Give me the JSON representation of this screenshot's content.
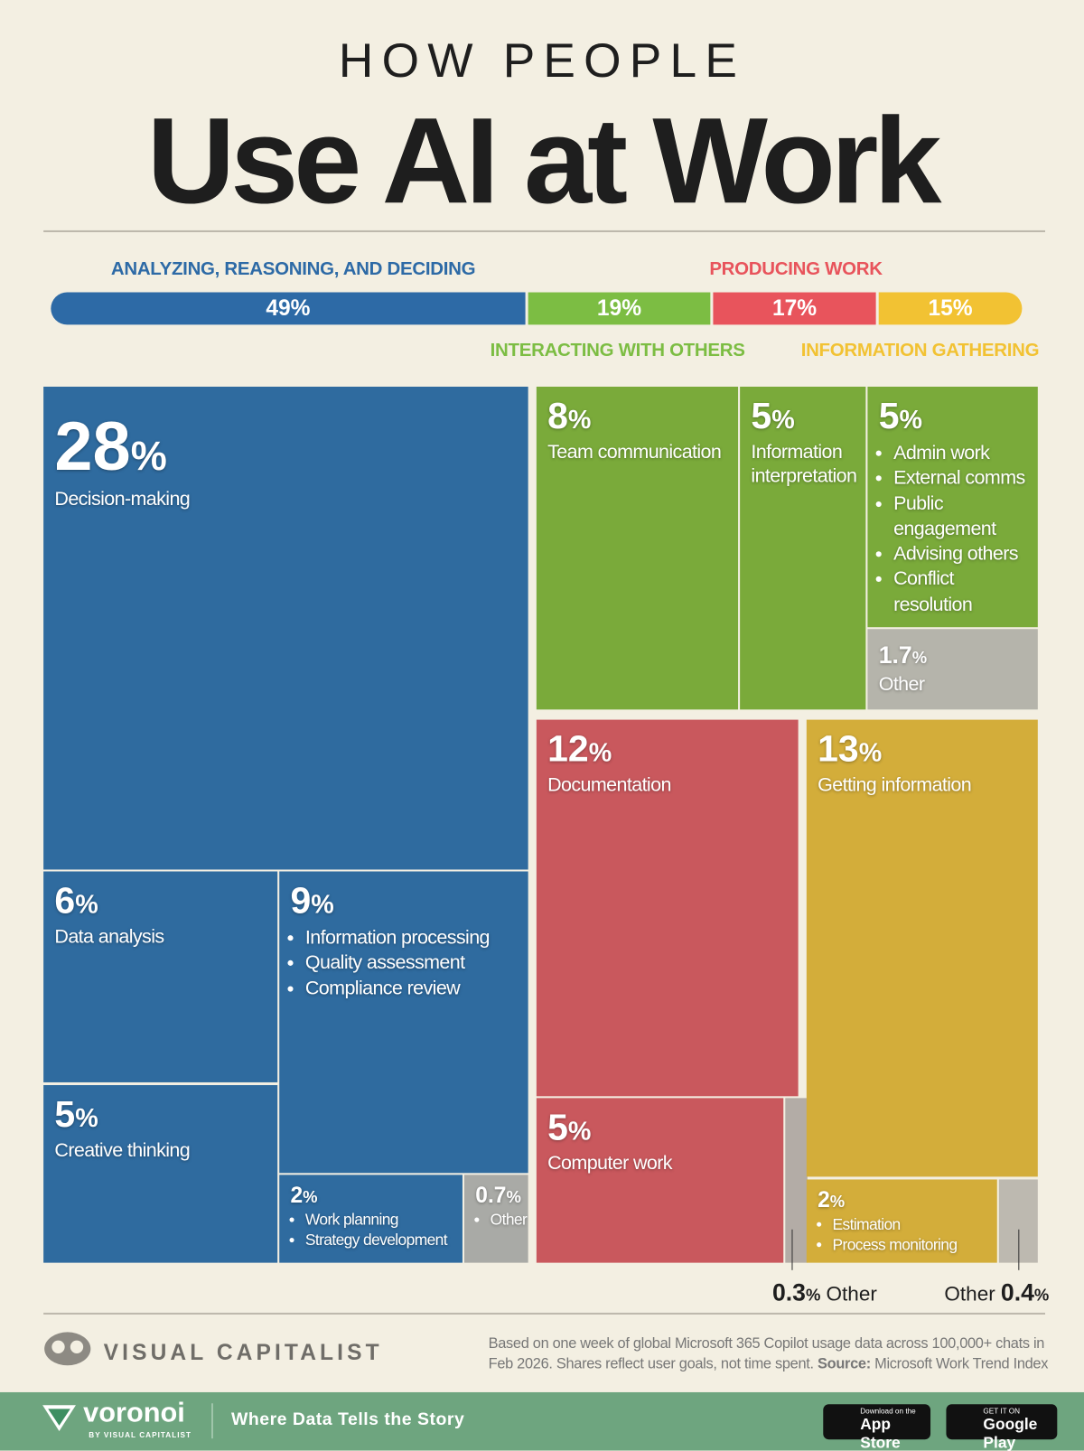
{
  "chart_data": {
    "type": "treemap",
    "kicker": "HOW PEOPLE",
    "title": "Use AI at Work",
    "unit": "%",
    "groups": [
      {
        "name": "ANALYZING, REASONING, AND DECIDING",
        "value": 49,
        "color": "#2d6aa6",
        "tile_color": "#2f6b9f",
        "tiles": [
          {
            "value": 28,
            "label": "Decision-making"
          },
          {
            "value": 6,
            "label": "Data analysis"
          },
          {
            "value": 9,
            "items": [
              "Information processing",
              "Quality assessment",
              "Compliance review"
            ]
          },
          {
            "value": 5,
            "label": "Creative thinking"
          },
          {
            "value": 2,
            "items": [
              "Work planning",
              "Strategy development"
            ]
          },
          {
            "value": 0.7,
            "items": [
              "Other"
            ],
            "color": "#a9aaa6"
          }
        ]
      },
      {
        "name": "INTERACTING WITH OTHERS",
        "value": 19,
        "color": "#7cbd43",
        "tile_color": "#7aaa3a",
        "tiles": [
          {
            "value": 8,
            "label": "Team communication"
          },
          {
            "value": 5,
            "label": "Information interpretation"
          },
          {
            "value": 5,
            "items": [
              "Admin work",
              "External comms",
              "Public engagement",
              "Advising others",
              "Conflict resolution"
            ]
          },
          {
            "value": 1.7,
            "label": "Other",
            "color": "#b5b4ab"
          }
        ]
      },
      {
        "name": "PRODUCING WORK",
        "value": 17,
        "color": "#e8545c",
        "tile_color": "#c9585d",
        "tiles": [
          {
            "value": 12,
            "label": "Documentation"
          },
          {
            "value": 5,
            "label": "Computer work"
          },
          {
            "value": 0.3,
            "label": "Other",
            "color": "#b3aca6"
          }
        ]
      },
      {
        "name": "INFORMATION GATHERING",
        "value": 15,
        "color": "#f2c233",
        "tile_color": "#d3ad3a",
        "tiles": [
          {
            "value": 13,
            "label": "Getting information"
          },
          {
            "value": 2,
            "items": [
              "Estimation",
              "Process monitoring"
            ]
          },
          {
            "value": 0.4,
            "label": "Other",
            "color": "#bdb9b0"
          }
        ]
      }
    ]
  },
  "footer": {
    "brand": "VISUAL CAPITALIST",
    "note": "Based on one week of global Microsoft 365 Copilot usage data across 100,000+ chats in Feb 2026. Shares reflect user goals, not time spent.",
    "source_label": "Source:",
    "source": "Microsoft Work Trend Index"
  },
  "banner": {
    "logo": "voronoi",
    "logo_sub": "BY VISUAL CAPITALIST",
    "tagline": "Where Data Tells the Story",
    "app_store_small": "Download on the",
    "app_store": "App Store",
    "google_small": "GET IT ON",
    "google": "Google Play"
  }
}
